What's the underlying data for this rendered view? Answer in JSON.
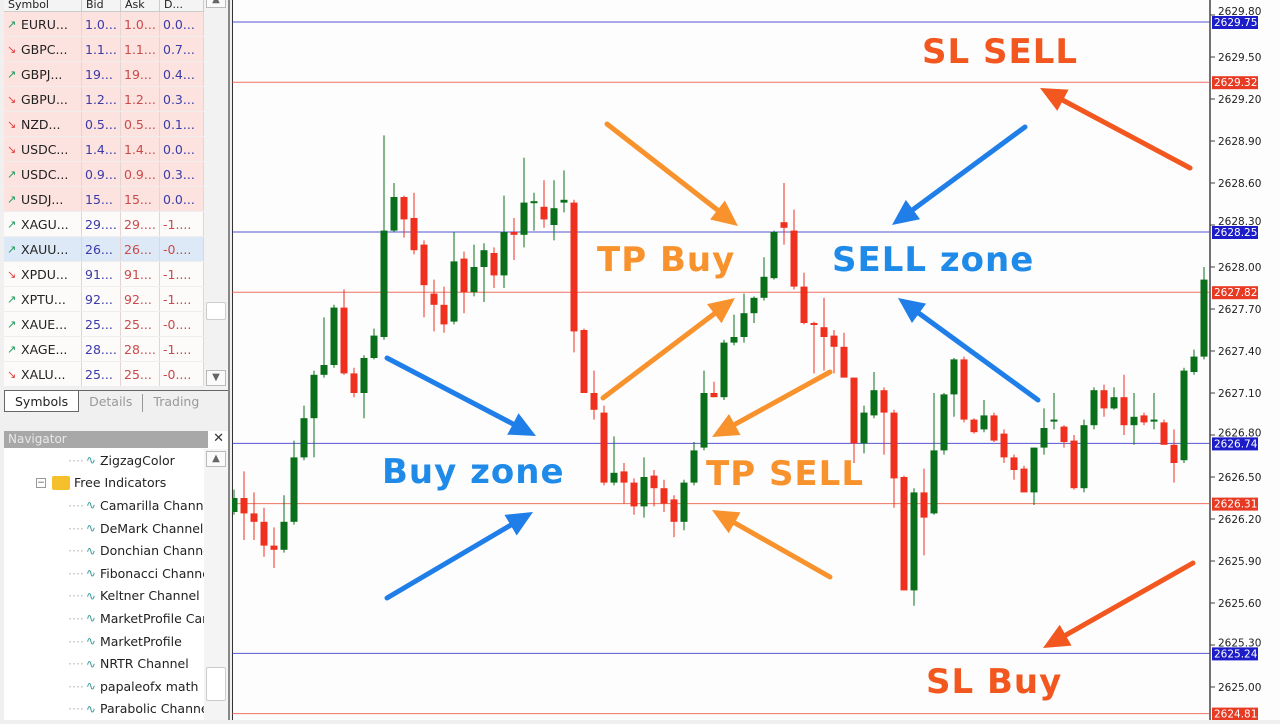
{
  "market_watch": {
    "columns": [
      "Symbol",
      "Bid",
      "Ask",
      "D..."
    ],
    "rows": [
      {
        "symbol": "EURU...",
        "bid": "1.0...",
        "ask": "1.0...",
        "daily": "0.0...",
        "dir": "up"
      },
      {
        "symbol": "GBPC...",
        "bid": "1.1...",
        "ask": "1.1...",
        "daily": "0.7...",
        "dir": "down"
      },
      {
        "symbol": "GBPJ...",
        "bid": "19...",
        "ask": "19...",
        "daily": "0.4...",
        "dir": "up"
      },
      {
        "symbol": "GBPU...",
        "bid": "1.2...",
        "ask": "1.2...",
        "daily": "0.3...",
        "dir": "down"
      },
      {
        "symbol": "NZD...",
        "bid": "0.5...",
        "ask": "0.5...",
        "daily": "0.1...",
        "dir": "down"
      },
      {
        "symbol": "USDC...",
        "bid": "1.4...",
        "ask": "1.4...",
        "daily": "0.0...",
        "dir": "down"
      },
      {
        "symbol": "USDC...",
        "bid": "0.9...",
        "ask": "0.9...",
        "daily": "0.3...",
        "dir": "up"
      },
      {
        "symbol": "USDJ...",
        "bid": "15...",
        "ask": "15...",
        "daily": "0.0...",
        "dir": "up"
      },
      {
        "symbol": "XAGU...",
        "bid": "29....",
        "ask": "29....",
        "daily": "-1....",
        "dir": "up"
      },
      {
        "symbol": "XAUU...",
        "bid": "26...",
        "ask": "26...",
        "daily": "-0....",
        "dir": "up",
        "selected": true
      },
      {
        "symbol": "XPDU...",
        "bid": "91...",
        "ask": "91...",
        "daily": "-1....",
        "dir": "down"
      },
      {
        "symbol": "XPTU...",
        "bid": "92...",
        "ask": "92...",
        "daily": "-1....",
        "dir": "up"
      },
      {
        "symbol": "XAUE...",
        "bid": "25...",
        "ask": "25...",
        "daily": "-0....",
        "dir": "up"
      },
      {
        "symbol": "XAGE...",
        "bid": "28....",
        "ask": "28....",
        "daily": "-1....",
        "dir": "up"
      },
      {
        "symbol": "XALU...",
        "bid": "25...",
        "ask": "25...",
        "daily": "-0....",
        "dir": "down"
      }
    ],
    "tabs": [
      "Symbols",
      "Details",
      "Trading"
    ],
    "active_tab": "Symbols"
  },
  "navigator": {
    "title": "Navigator",
    "items": [
      {
        "label": "ZigzagColor",
        "type": "indicator",
        "level": 2
      },
      {
        "label": "Free Indicators",
        "type": "folder",
        "level": 1
      },
      {
        "label": "Camarilla Channel",
        "type": "indicator",
        "level": 2
      },
      {
        "label": "DeMark Channel",
        "type": "indicator",
        "level": 2
      },
      {
        "label": "Donchian Channel",
        "type": "indicator",
        "level": 2
      },
      {
        "label": "Fibonacci Channel",
        "type": "indicator",
        "level": 2
      },
      {
        "label": "Keltner Channel",
        "type": "indicator",
        "level": 2
      },
      {
        "label": "MarketProfile Canvas",
        "type": "indicator",
        "level": 2
      },
      {
        "label": "MarketProfile",
        "type": "indicator",
        "level": 2
      },
      {
        "label": "NRTR Channel",
        "type": "indicator",
        "level": 2
      },
      {
        "label": "papaleofx math",
        "type": "indicator",
        "level": 2
      },
      {
        "label": "Parabolic Channel",
        "type": "indicator",
        "level": 2
      }
    ]
  },
  "annotations": [
    {
      "text": "SL SELL",
      "color": "#f2571f"
    },
    {
      "text": "TP Buy",
      "color": "#f7922d"
    },
    {
      "text": "SELL zone",
      "color": "#1f8ae8"
    },
    {
      "text": "Buy zone",
      "color": "#1f8ae8"
    },
    {
      "text": "TP SELL",
      "color": "#f7922d"
    },
    {
      "text": "SL Buy",
      "color": "#f2571f"
    }
  ],
  "chart_data": {
    "type": "candlestick",
    "colors": {
      "bull": "#0a6e1a",
      "bear": "#f0301e",
      "blue_level": "#2c2cc8",
      "red_level": "#e8503a"
    },
    "y_ticks": [
      "2629.80",
      "2629.50",
      "2629.20",
      "2628.90",
      "2628.60",
      "2628.30",
      "2628.00",
      "2627.70",
      "2627.40",
      "2627.10",
      "2626.80",
      "2626.50",
      "2626.20",
      "2625.90",
      "2625.60",
      "2625.30",
      "2625.00"
    ],
    "levels": [
      {
        "price": "2629.75",
        "color": "blue"
      },
      {
        "price": "2629.32",
        "color": "red"
      },
      {
        "price": "2628.25",
        "color": "blue"
      },
      {
        "price": "2627.82",
        "color": "red"
      },
      {
        "price": "2626.74",
        "color": "blue"
      },
      {
        "price": "2626.31",
        "color": "red"
      },
      {
        "price": "2625.24",
        "color": "blue"
      },
      {
        "price": "2624.81",
        "color": "red"
      }
    ],
    "ohlc": [
      [
        2626.25,
        2626.41,
        2626.23,
        2626.35
      ],
      [
        2626.35,
        2626.54,
        2626.05,
        2626.24
      ],
      [
        2626.24,
        2626.39,
        2626.05,
        2626.18
      ],
      [
        2626.18,
        2626.28,
        2625.93,
        2626.01
      ],
      [
        2626.01,
        2626.14,
        2625.85,
        2625.98
      ],
      [
        2625.98,
        2626.37,
        2625.96,
        2626.18
      ],
      [
        2626.18,
        2626.76,
        2626.16,
        2626.64
      ],
      [
        2626.64,
        2627.01,
        2626.62,
        2626.92
      ],
      [
        2626.92,
        2627.26,
        2626.64,
        2627.23
      ],
      [
        2627.23,
        2627.64,
        2627.21,
        2627.3
      ],
      [
        2627.3,
        2627.73,
        2627.28,
        2627.71
      ],
      [
        2627.71,
        2627.84,
        2627.23,
        2627.24
      ],
      [
        2627.24,
        2627.28,
        2627.07,
        2627.1
      ],
      [
        2627.1,
        2627.37,
        2626.92,
        2627.35
      ],
      [
        2627.35,
        2627.56,
        2627.34,
        2627.51
      ],
      [
        2627.5,
        2628.94,
        2627.48,
        2628.26
      ],
      [
        2628.26,
        2628.6,
        2628.25,
        2628.5
      ],
      [
        2628.5,
        2628.51,
        2628.21,
        2628.34
      ],
      [
        2628.35,
        2628.53,
        2628.09,
        2628.12
      ],
      [
        2628.16,
        2628.19,
        2627.64,
        2627.87
      ],
      [
        2627.81,
        2627.91,
        2627.54,
        2627.73
      ],
      [
        2627.73,
        2627.86,
        2627.53,
        2627.59
      ],
      [
        2627.61,
        2628.25,
        2627.59,
        2628.04
      ],
      [
        2628.06,
        2628.11,
        2627.67,
        2627.82
      ],
      [
        2627.82,
        2628.16,
        2627.79,
        2628.0
      ],
      [
        2628.0,
        2628.17,
        2627.75,
        2628.12
      ],
      [
        2628.1,
        2628.14,
        2627.85,
        2627.94
      ],
      [
        2627.94,
        2628.51,
        2627.85,
        2628.25
      ],
      [
        2628.25,
        2628.35,
        2628.05,
        2628.23
      ],
      [
        2628.23,
        2628.78,
        2628.14,
        2628.46
      ],
      [
        2628.46,
        2628.53,
        2628.26,
        2628.47
      ],
      [
        2628.43,
        2628.62,
        2628.28,
        2628.34
      ],
      [
        2628.3,
        2628.62,
        2628.19,
        2628.42
      ],
      [
        2628.46,
        2628.69,
        2628.39,
        2628.48
      ],
      [
        2628.46,
        2628.48,
        2627.39,
        2627.54
      ],
      [
        2627.55,
        2627.56,
        2627.1,
        2627.1
      ],
      [
        2627.1,
        2627.26,
        2626.91,
        2626.98
      ],
      [
        2626.96,
        2627.01,
        2626.44,
        2626.46
      ],
      [
        2626.46,
        2626.79,
        2626.44,
        2626.53
      ],
      [
        2626.54,
        2626.6,
        2626.31,
        2626.46
      ],
      [
        2626.46,
        2626.49,
        2626.23,
        2626.29
      ],
      [
        2626.29,
        2626.64,
        2626.21,
        2626.5
      ],
      [
        2626.51,
        2626.55,
        2626.29,
        2626.42
      ],
      [
        2626.42,
        2626.48,
        2626.25,
        2626.31
      ],
      [
        2626.34,
        2626.37,
        2626.07,
        2626.18
      ],
      [
        2626.18,
        2626.48,
        2626.12,
        2626.46
      ],
      [
        2626.46,
        2626.75,
        2626.44,
        2626.69
      ],
      [
        2626.71,
        2627.26,
        2626.69,
        2627.1
      ],
      [
        2627.1,
        2627.18,
        2627.07,
        2627.07
      ],
      [
        2627.07,
        2627.48,
        2627.05,
        2627.46
      ],
      [
        2627.46,
        2627.66,
        2627.44,
        2627.5
      ],
      [
        2627.5,
        2627.81,
        2627.46,
        2627.67
      ],
      [
        2627.67,
        2627.79,
        2627.6,
        2627.78
      ],
      [
        2627.78,
        2628.07,
        2627.76,
        2627.93
      ],
      [
        2627.92,
        2628.26,
        2627.91,
        2628.25
      ],
      [
        2628.32,
        2628.6,
        2628.16,
        2628.28
      ],
      [
        2628.26,
        2628.41,
        2627.84,
        2627.86
      ],
      [
        2627.86,
        2627.96,
        2627.59,
        2627.6
      ],
      [
        2627.6,
        2627.61,
        2627.24,
        2627.59
      ],
      [
        2627.57,
        2627.78,
        2627.26,
        2627.5
      ],
      [
        2627.51,
        2627.55,
        2627.24,
        2627.43
      ],
      [
        2627.43,
        2627.53,
        2627.21,
        2627.21
      ],
      [
        2627.21,
        2627.21,
        2626.6,
        2626.74
      ],
      [
        2626.74,
        2627.01,
        2626.67,
        2626.96
      ],
      [
        2626.94,
        2627.25,
        2626.92,
        2627.12
      ],
      [
        2627.12,
        2627.14,
        2626.66,
        2626.96
      ],
      [
        2626.96,
        2626.98,
        2626.28,
        2626.49
      ],
      [
        2626.5,
        2626.51,
        2625.69,
        2625.69
      ],
      [
        2625.69,
        2626.42,
        2625.58,
        2626.39
      ],
      [
        2626.39,
        2626.56,
        2625.94,
        2626.21
      ],
      [
        2626.24,
        2627.1,
        2626.23,
        2626.69
      ],
      [
        2626.69,
        2627.1,
        2626.66,
        2627.09
      ],
      [
        2627.09,
        2627.35,
        2626.93,
        2627.34
      ],
      [
        2627.34,
        2627.36,
        2626.89,
        2626.91
      ],
      [
        2626.91,
        2626.92,
        2626.81,
        2626.82
      ],
      [
        2626.84,
        2627.05,
        2626.82,
        2626.94
      ],
      [
        2626.94,
        2626.96,
        2626.75,
        2626.76
      ],
      [
        2626.81,
        2626.84,
        2626.6,
        2626.64
      ],
      [
        2626.64,
        2626.66,
        2626.48,
        2626.55
      ],
      [
        2626.56,
        2626.58,
        2626.39,
        2626.39
      ],
      [
        2626.39,
        2626.71,
        2626.3,
        2626.71
      ],
      [
        2626.71,
        2626.99,
        2626.66,
        2626.85
      ],
      [
        2626.9,
        2627.1,
        2626.84,
        2626.91
      ],
      [
        2626.86,
        2626.87,
        2626.71,
        2626.75
      ],
      [
        2626.76,
        2626.8,
        2626.41,
        2626.42
      ],
      [
        2626.42,
        2626.91,
        2626.39,
        2626.87
      ],
      [
        2626.87,
        2627.14,
        2626.84,
        2627.12
      ],
      [
        2627.12,
        2627.16,
        2626.93,
        2626.99
      ],
      [
        2626.99,
        2627.14,
        2626.98,
        2627.07
      ],
      [
        2627.07,
        2627.23,
        2626.8,
        2626.87
      ],
      [
        2626.87,
        2627.1,
        2626.73,
        2626.93
      ],
      [
        2626.94,
        2626.96,
        2626.87,
        2626.89
      ],
      [
        2626.9,
        2627.1,
        2626.84,
        2626.91
      ],
      [
        2626.89,
        2626.91,
        2626.73,
        2626.73
      ],
      [
        2626.73,
        2626.84,
        2626.46,
        2626.6
      ],
      [
        2626.62,
        2627.28,
        2626.6,
        2627.26
      ],
      [
        2627.25,
        2627.41,
        2627.23,
        2627.36
      ],
      [
        2627.36,
        2628.0,
        2627.34,
        2627.91
      ]
    ]
  }
}
